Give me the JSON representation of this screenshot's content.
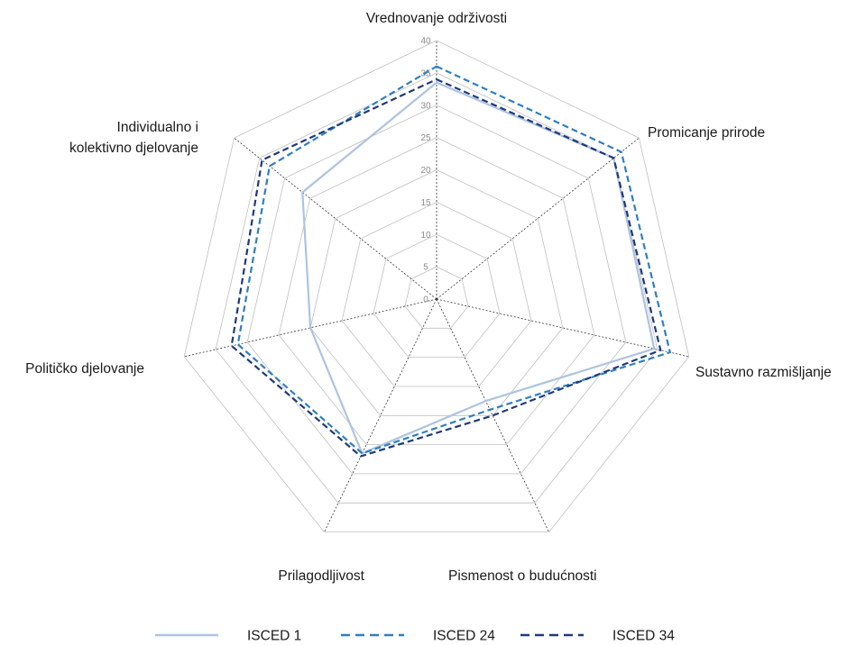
{
  "chart_data": {
    "type": "radar",
    "title": "",
    "axes": [
      "Vrednovanje održivosti",
      "Promicanje prirode",
      "Sustavno razmišljanje",
      "Pismenost o budućnosti",
      "Prilagodljivost",
      "Političko djelovanje",
      "Individualno i kolektivno djelovanje"
    ],
    "axis_label_lines": [
      [
        "Vrednovanje održivosti"
      ],
      [
        "Promicanje prirode"
      ],
      [
        "Sustavno razmišljanje"
      ],
      [
        "Pismenost o budućnosti"
      ],
      [
        "Prilagodljivost"
      ],
      [
        "Političko djelovanje"
      ],
      [
        "Individualno i",
        "kolektivno djelovanje"
      ]
    ],
    "rlim": [
      0,
      40
    ],
    "ticks": [
      0,
      5,
      10,
      15,
      20,
      25,
      30,
      35,
      40
    ],
    "grid": true,
    "legend_position": "bottom",
    "series": [
      {
        "name": "ISCED 1",
        "color": "#aec3e0",
        "dash": "solid",
        "values": [
          33.5,
          35,
          34.5,
          17.5,
          26.5,
          20,
          26.5
        ]
      },
      {
        "name": "ISCED 24",
        "color": "#2f7fc0",
        "dash": "dashed",
        "values": [
          36,
          36.5,
          37,
          19,
          26.5,
          31.5,
          33
        ]
      },
      {
        "name": "ISCED 34",
        "color": "#1f3a7a",
        "dash": "dashed",
        "values": [
          34,
          35,
          35.5,
          20,
          27,
          32.5,
          34.5
        ]
      }
    ]
  }
}
